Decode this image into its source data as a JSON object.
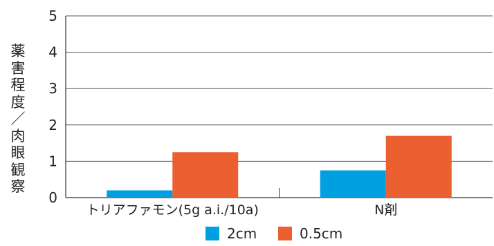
{
  "chart_data": {
    "type": "bar",
    "title": "",
    "ylabel": "薬害程度/肉眼観察",
    "xlabel": "",
    "categories": [
      "トリアファモン(5g a.i./10a)",
      "N剤"
    ],
    "series": [
      {
        "name": "2cm",
        "values": [
          0.2,
          0.75
        ],
        "color": "#009fe0"
      },
      {
        "name": "0.5cm",
        "values": [
          1.25,
          1.7
        ],
        "color": "#ea6030"
      }
    ],
    "ylim": [
      0,
      5
    ],
    "yticks": [
      "0",
      "1",
      "2",
      "3",
      "4",
      "5"
    ],
    "grid": true,
    "legend_position": "bottom"
  }
}
